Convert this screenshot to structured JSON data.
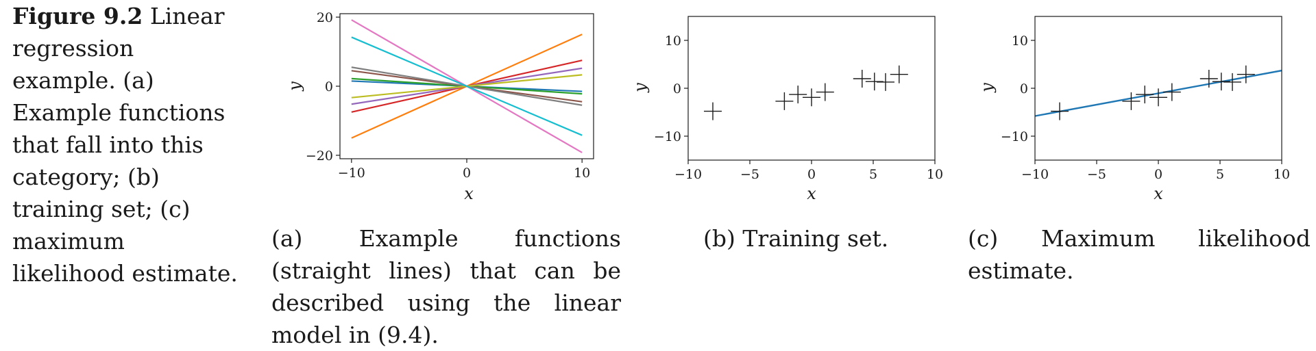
{
  "figure": {
    "label": "Figure 9.2",
    "caption": "Linear regression example. (a) Example functions that fall into this category; (b) training set; (c) maximum likelihood estimate."
  },
  "subcaptions": {
    "a": "(a) Example functions (straight lines) that can be described using the linear model in (9.4).",
    "b": "(b) Training set.",
    "c": "(c) Maximum likelihood estimate."
  },
  "chart_data": [
    {
      "id": "a",
      "type": "line",
      "xlabel": "x",
      "ylabel": "y",
      "xlim": [
        -11,
        11
      ],
      "ylim": [
        -21,
        21
      ],
      "xticks": [
        -10,
        0,
        10
      ],
      "yticks": [
        -20,
        0,
        20
      ],
      "grid": false,
      "series": [
        {
          "color": "#1f77b4",
          "slope": -0.15
        },
        {
          "color": "#ff7f0e",
          "slope": 1.5
        },
        {
          "color": "#2ca02c",
          "slope": -0.22
        },
        {
          "color": "#d62728",
          "slope": 0.75
        },
        {
          "color": "#9467bd",
          "slope": 0.52
        },
        {
          "color": "#8c564b",
          "slope": -0.45
        },
        {
          "color": "#e377c2",
          "slope": -1.92
        },
        {
          "color": "#7f7f7f",
          "slope": -0.55
        },
        {
          "color": "#bcbd22",
          "slope": 0.33
        },
        {
          "color": "#17becf",
          "slope": -1.42
        }
      ]
    },
    {
      "id": "b",
      "type": "scatter",
      "marker": "+",
      "xlabel": "x",
      "ylabel": "y",
      "xlim": [
        -10,
        10
      ],
      "ylim": [
        -15,
        15
      ],
      "xticks": [
        -10,
        -5,
        0,
        5,
        10
      ],
      "yticks": [
        -10,
        0,
        10
      ],
      "grid": false,
      "points": [
        {
          "x": -8,
          "y": -4.8
        },
        {
          "x": -2.2,
          "y": -2.7
        },
        {
          "x": -1.1,
          "y": -1.3
        },
        {
          "x": 0,
          "y": -1.9
        },
        {
          "x": 1.1,
          "y": -0.8
        },
        {
          "x": 4.1,
          "y": 2.0
        },
        {
          "x": 5.1,
          "y": 1.4
        },
        {
          "x": 6.0,
          "y": 1.3
        },
        {
          "x": 7.1,
          "y": 2.9
        }
      ]
    },
    {
      "id": "c",
      "type": "scatter",
      "marker": "+",
      "xlabel": "x",
      "ylabel": "y",
      "xlim": [
        -10,
        10
      ],
      "ylim": [
        -15,
        15
      ],
      "xticks": [
        -10,
        -5,
        0,
        5,
        10
      ],
      "yticks": [
        -10,
        0,
        10
      ],
      "grid": false,
      "points": [
        {
          "x": -8,
          "y": -4.8
        },
        {
          "x": -2.2,
          "y": -2.7
        },
        {
          "x": -1.1,
          "y": -1.3
        },
        {
          "x": 0,
          "y": -1.9
        },
        {
          "x": 1.1,
          "y": -0.8
        },
        {
          "x": 4.1,
          "y": 2.0
        },
        {
          "x": 5.1,
          "y": 1.4
        },
        {
          "x": 6.0,
          "y": 1.3
        },
        {
          "x": 7.1,
          "y": 2.9
        }
      ],
      "fit_line": {
        "color": "#1f77b4",
        "x": [
          -10,
          10
        ],
        "y": [
          -5.8,
          3.7
        ]
      }
    }
  ]
}
